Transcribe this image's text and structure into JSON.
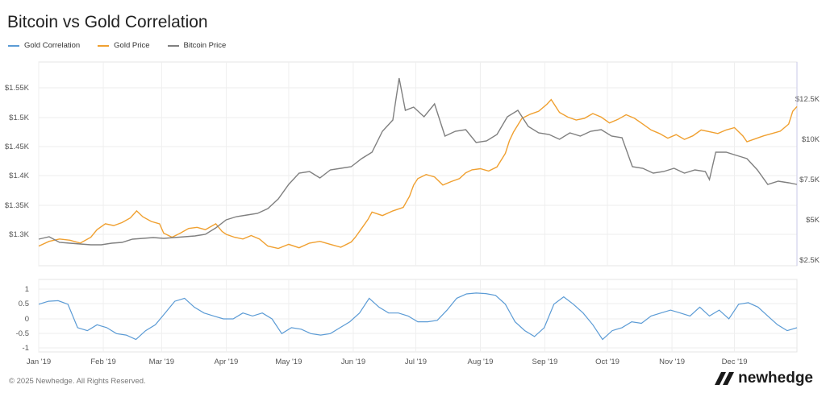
{
  "title": "Bitcoin vs Gold Correlation",
  "legend": [
    {
      "name": "Gold Correlation",
      "color": "#5b9bd5"
    },
    {
      "name": "Gold Price",
      "color": "#f0a030"
    },
    {
      "name": "Bitcoin Price",
      "color": "#808080"
    }
  ],
  "footer": "© 2025 Newhedge. All Rights Reserved.",
  "brand": "newhedge",
  "chart_data": [
    {
      "type": "line",
      "title": "",
      "x_ticks": [
        "Jan '19",
        "Feb '19",
        "Mar '19",
        "Apr '19",
        "May '19",
        "Jun '19",
        "Jul '19",
        "Aug '19",
        "Sep '19",
        "Oct '19",
        "Nov '19",
        "Dec '19"
      ],
      "y_left": {
        "label": "",
        "ticks": [
          "$1.3K",
          "$1.35K",
          "$1.4K",
          "$1.45K",
          "$1.5K",
          "$1.55K"
        ],
        "range": [
          1250,
          1570
        ]
      },
      "y_right": {
        "label": "",
        "ticks": [
          "$2.5K",
          "$5K",
          "$7.5K",
          "$10K",
          "$12.5K"
        ],
        "range": [
          2000,
          13500
        ]
      },
      "grid": true,
      "legend_position": "top-left",
      "series": [
        {
          "name": "Gold Price",
          "axis": "left",
          "color": "#f0a030",
          "points": [
            [
              0,
              1280
            ],
            [
              5,
              1288
            ],
            [
              10,
              1292
            ],
            [
              15,
              1290
            ],
            [
              20,
              1285
            ],
            [
              25,
              1295
            ],
            [
              28,
              1308
            ],
            [
              32,
              1318
            ],
            [
              36,
              1315
            ],
            [
              40,
              1320
            ],
            [
              44,
              1328
            ],
            [
              47,
              1340
            ],
            [
              50,
              1330
            ],
            [
              54,
              1322
            ],
            [
              58,
              1318
            ],
            [
              60,
              1302
            ],
            [
              64,
              1295
            ],
            [
              68,
              1302
            ],
            [
              72,
              1310
            ],
            [
              76,
              1312
            ],
            [
              80,
              1308
            ],
            [
              85,
              1318
            ],
            [
              88,
              1305
            ],
            [
              90,
              1300
            ],
            [
              94,
              1295
            ],
            [
              98,
              1292
            ],
            [
              102,
              1298
            ],
            [
              106,
              1292
            ],
            [
              110,
              1280
            ],
            [
              115,
              1276
            ],
            [
              120,
              1283
            ],
            [
              125,
              1277
            ],
            [
              130,
              1285
            ],
            [
              135,
              1288
            ],
            [
              140,
              1283
            ],
            [
              145,
              1278
            ],
            [
              150,
              1287
            ],
            [
              152,
              1295
            ],
            [
              155,
              1310
            ],
            [
              158,
              1325
            ],
            [
              160,
              1338
            ],
            [
              165,
              1332
            ],
            [
              170,
              1340
            ],
            [
              175,
              1346
            ],
            [
              178,
              1365
            ],
            [
              180,
              1384
            ],
            [
              182,
              1395
            ],
            [
              186,
              1402
            ],
            [
              190,
              1398
            ],
            [
              194,
              1384
            ],
            [
              198,
              1390
            ],
            [
              202,
              1395
            ],
            [
              205,
              1405
            ],
            [
              208,
              1410
            ],
            [
              212,
              1412
            ],
            [
              216,
              1408
            ],
            [
              220,
              1415
            ],
            [
              224,
              1438
            ],
            [
              226,
              1460
            ],
            [
              228,
              1475
            ],
            [
              232,
              1498
            ],
            [
              236,
              1505
            ],
            [
              240,
              1510
            ],
            [
              244,
              1522
            ],
            [
              246,
              1530
            ],
            [
              250,
              1508
            ],
            [
              254,
              1500
            ],
            [
              258,
              1495
            ],
            [
              262,
              1498
            ],
            [
              266,
              1506
            ],
            [
              270,
              1500
            ],
            [
              274,
              1490
            ],
            [
              278,
              1496
            ],
            [
              282,
              1504
            ],
            [
              286,
              1498
            ],
            [
              290,
              1488
            ],
            [
              294,
              1478
            ],
            [
              298,
              1472
            ],
            [
              302,
              1464
            ],
            [
              306,
              1470
            ],
            [
              310,
              1462
            ],
            [
              314,
              1468
            ],
            [
              318,
              1478
            ],
            [
              322,
              1475
            ],
            [
              326,
              1472
            ],
            [
              330,
              1478
            ],
            [
              334,
              1482
            ],
            [
              338,
              1468
            ],
            [
              340,
              1458
            ],
            [
              344,
              1463
            ],
            [
              348,
              1468
            ],
            [
              352,
              1472
            ],
            [
              356,
              1476
            ],
            [
              360,
              1488
            ],
            [
              362,
              1510
            ],
            [
              364,
              1518
            ]
          ]
        },
        {
          "name": "Bitcoin Price",
          "axis": "right",
          "color": "#808080",
          "points": [
            [
              0,
              3800
            ],
            [
              5,
              3950
            ],
            [
              10,
              3600
            ],
            [
              15,
              3550
            ],
            [
              20,
              3500
            ],
            [
              25,
              3450
            ],
            [
              30,
              3450
            ],
            [
              35,
              3550
            ],
            [
              40,
              3600
            ],
            [
              45,
              3800
            ],
            [
              50,
              3850
            ],
            [
              55,
              3900
            ],
            [
              60,
              3850
            ],
            [
              65,
              3900
            ],
            [
              70,
              3950
            ],
            [
              75,
              4000
            ],
            [
              80,
              4100
            ],
            [
              85,
              4500
            ],
            [
              90,
              5000
            ],
            [
              95,
              5200
            ],
            [
              100,
              5300
            ],
            [
              105,
              5400
            ],
            [
              110,
              5700
            ],
            [
              115,
              6300
            ],
            [
              120,
              7200
            ],
            [
              125,
              7900
            ],
            [
              130,
              8000
            ],
            [
              135,
              7600
            ],
            [
              140,
              8100
            ],
            [
              145,
              8200
            ],
            [
              150,
              8300
            ],
            [
              155,
              8800
            ],
            [
              160,
              9200
            ],
            [
              165,
              10500
            ],
            [
              170,
              11200
            ],
            [
              173,
              13800
            ],
            [
              176,
              11800
            ],
            [
              180,
              12000
            ],
            [
              185,
              11400
            ],
            [
              190,
              12200
            ],
            [
              195,
              10200
            ],
            [
              200,
              10500
            ],
            [
              205,
              10600
            ],
            [
              210,
              9800
            ],
            [
              215,
              9900
            ],
            [
              220,
              10300
            ],
            [
              225,
              11400
            ],
            [
              230,
              11800
            ],
            [
              235,
              10800
            ],
            [
              240,
              10400
            ],
            [
              245,
              10300
            ],
            [
              250,
              10000
            ],
            [
              255,
              10400
            ],
            [
              260,
              10200
            ],
            [
              265,
              10500
            ],
            [
              270,
              10600
            ],
            [
              275,
              10200
            ],
            [
              280,
              10100
            ],
            [
              285,
              8300
            ],
            [
              290,
              8200
            ],
            [
              295,
              7900
            ],
            [
              300,
              8000
            ],
            [
              305,
              8200
            ],
            [
              310,
              7900
            ],
            [
              315,
              8100
            ],
            [
              320,
              8000
            ],
            [
              322,
              7500
            ],
            [
              325,
              9200
            ],
            [
              330,
              9200
            ],
            [
              335,
              9000
            ],
            [
              340,
              8800
            ],
            [
              345,
              8100
            ],
            [
              350,
              7200
            ],
            [
              355,
              7400
            ],
            [
              360,
              7300
            ],
            [
              364,
              7200
            ]
          ]
        }
      ]
    },
    {
      "type": "line",
      "title": "",
      "y_ticks": [
        "1",
        "0.5",
        "0",
        "-0.5",
        "-1"
      ],
      "ylim": [
        -1,
        1
      ],
      "series": [
        {
          "name": "Gold Correlation",
          "color": "#5b9bd5",
          "points": [
            [
              0,
              0.5
            ],
            [
              5,
              0.6
            ],
            [
              10,
              0.62
            ],
            [
              15,
              0.5
            ],
            [
              20,
              -0.3
            ],
            [
              25,
              -0.4
            ],
            [
              30,
              -0.2
            ],
            [
              35,
              -0.3
            ],
            [
              40,
              -0.5
            ],
            [
              45,
              -0.55
            ],
            [
              50,
              -0.7
            ],
            [
              55,
              -0.4
            ],
            [
              60,
              -0.2
            ],
            [
              65,
              0.2
            ],
            [
              70,
              0.6
            ],
            [
              75,
              0.7
            ],
            [
              80,
              0.4
            ],
            [
              85,
              0.2
            ],
            [
              90,
              0.1
            ],
            [
              95,
              0.0
            ],
            [
              100,
              0.0
            ],
            [
              105,
              0.2
            ],
            [
              110,
              0.1
            ],
            [
              115,
              0.2
            ],
            [
              120,
              0.0
            ],
            [
              125,
              -0.5
            ],
            [
              130,
              -0.3
            ],
            [
              135,
              -0.35
            ],
            [
              140,
              -0.5
            ],
            [
              145,
              -0.55
            ],
            [
              150,
              -0.5
            ],
            [
              155,
              -0.3
            ],
            [
              160,
              -0.1
            ],
            [
              165,
              0.2
            ],
            [
              170,
              0.7
            ],
            [
              175,
              0.4
            ],
            [
              180,
              0.2
            ],
            [
              185,
              0.2
            ],
            [
              190,
              0.1
            ],
            [
              195,
              -0.1
            ],
            [
              200,
              -0.1
            ],
            [
              205,
              -0.05
            ],
            [
              210,
              0.3
            ],
            [
              215,
              0.7
            ],
            [
              220,
              0.85
            ],
            [
              225,
              0.88
            ],
            [
              230,
              0.86
            ],
            [
              235,
              0.8
            ],
            [
              240,
              0.5
            ],
            [
              245,
              -0.1
            ],
            [
              250,
              -0.4
            ],
            [
              255,
              -0.6
            ],
            [
              260,
              -0.3
            ],
            [
              265,
              0.5
            ],
            [
              270,
              0.75
            ],
            [
              275,
              0.5
            ],
            [
              280,
              0.2
            ],
            [
              285,
              -0.2
            ],
            [
              290,
              -0.7
            ],
            [
              295,
              -0.4
            ],
            [
              300,
              -0.3
            ],
            [
              305,
              -0.1
            ],
            [
              310,
              -0.15
            ],
            [
              315,
              0.1
            ],
            [
              320,
              0.2
            ],
            [
              325,
              0.3
            ],
            [
              330,
              0.2
            ],
            [
              335,
              0.1
            ],
            [
              340,
              0.4
            ],
            [
              345,
              0.1
            ],
            [
              350,
              0.3
            ],
            [
              355,
              0.0
            ],
            [
              360,
              0.5
            ],
            [
              365,
              0.55
            ],
            [
              370,
              0.4
            ],
            [
              375,
              0.1
            ],
            [
              380,
              -0.2
            ],
            [
              385,
              -0.4
            ],
            [
              390,
              -0.3
            ]
          ]
        }
      ]
    }
  ]
}
